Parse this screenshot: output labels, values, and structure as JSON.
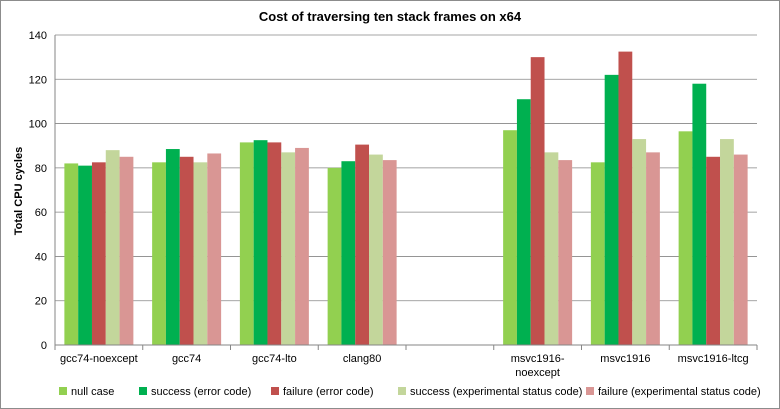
{
  "chart_data": {
    "type": "bar",
    "title": "Cost of traversing ten stack frames on x64",
    "xlabel": "",
    "ylabel": "Total CPU cycles",
    "ylim": [
      0,
      140
    ],
    "yticks": [
      0,
      20,
      40,
      60,
      80,
      100,
      120,
      140
    ],
    "grid": true,
    "legend": "bottom",
    "categories": [
      [
        "gcc74-noexcept"
      ],
      [
        "gcc74"
      ],
      [
        "gcc74-lto"
      ],
      [
        "clang80"
      ],
      [
        ""
      ],
      [
        "msvc1916-",
        "noexcept"
      ],
      [
        "msvc1916"
      ],
      [
        "msvc1916-ltcg"
      ]
    ],
    "series": [
      {
        "name": "null case",
        "color": "#92d050",
        "values": [
          82,
          82.5,
          91.5,
          80,
          null,
          97,
          82.5,
          96.5
        ]
      },
      {
        "name": "success (error code)",
        "color": "#00b050",
        "values": [
          81,
          88.5,
          92.5,
          83,
          null,
          111,
          122,
          118
        ]
      },
      {
        "name": "failure (error code)",
        "color": "#c0504d",
        "values": [
          82.5,
          85,
          91.5,
          90.5,
          null,
          130,
          132.5,
          85
        ]
      },
      {
        "name": "success (experimental status code)",
        "color": "#c3d69b",
        "values": [
          88,
          82.5,
          87,
          86,
          null,
          87,
          93,
          93
        ]
      },
      {
        "name": "failure (experimental status code)",
        "color": "#d99694",
        "values": [
          85,
          86.5,
          89,
          83.5,
          null,
          83.5,
          87,
          86
        ]
      }
    ]
  }
}
